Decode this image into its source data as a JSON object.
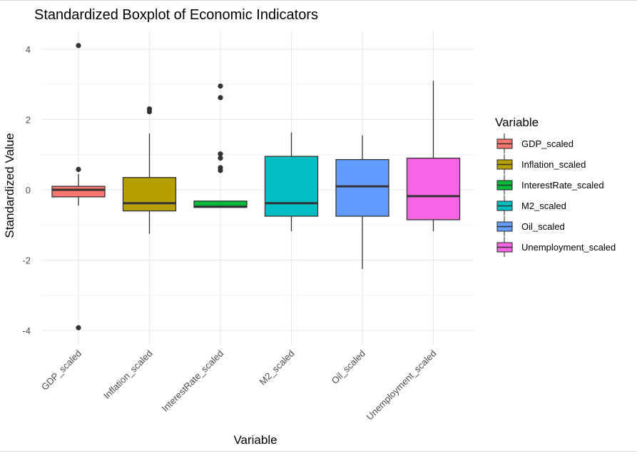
{
  "chart_data": {
    "type": "boxplot",
    "title": "Standardized Boxplot of Economic Indicators",
    "xlabel": "Variable",
    "ylabel": "Standardized Value",
    "ylim": [
      -4.4,
      4.5
    ],
    "yticks": [
      -4,
      -2,
      0,
      2,
      4
    ],
    "grid": true,
    "legend_title": "Variable",
    "legend_position": "right",
    "categories": [
      "GDP_scaled",
      "Inflation_scaled",
      "InterestRate_scaled",
      "M2_scaled",
      "Oil_scaled",
      "Unemployment_scaled"
    ],
    "colors": [
      "#F8766D",
      "#B79F00",
      "#00BA38",
      "#00BFC4",
      "#619CFF",
      "#F564E3"
    ],
    "boxes": [
      {
        "name": "GDP_scaled",
        "whisker_low": -0.45,
        "q1": -0.2,
        "median": 0.0,
        "q3": 0.1,
        "whisker_high": 0.45,
        "outliers": [
          4.1,
          0.58,
          -3.92
        ]
      },
      {
        "name": "Inflation_scaled",
        "whisker_low": -1.25,
        "q1": -0.6,
        "median": -0.38,
        "q3": 0.35,
        "whisker_high": 1.6,
        "outliers": [
          2.3,
          2.22
        ]
      },
      {
        "name": "InterestRate_scaled",
        "whisker_low": -0.5,
        "q1": -0.5,
        "median": -0.48,
        "q3": -0.32,
        "whisker_high": -0.32,
        "outliers": [
          2.95,
          2.62,
          1.02,
          0.9,
          0.63,
          0.55
        ]
      },
      {
        "name": "M2_scaled",
        "whisker_low": -1.18,
        "q1": -0.75,
        "median": -0.38,
        "q3": 0.95,
        "whisker_high": 1.63,
        "outliers": []
      },
      {
        "name": "Oil_scaled",
        "whisker_low": -2.25,
        "q1": -0.75,
        "median": 0.1,
        "q3": 0.86,
        "whisker_high": 1.55,
        "outliers": []
      },
      {
        "name": "Unemployment_scaled",
        "whisker_low": -1.18,
        "q1": -0.85,
        "median": -0.18,
        "q3": 0.9,
        "whisker_high": 3.1,
        "outliers": []
      }
    ]
  }
}
